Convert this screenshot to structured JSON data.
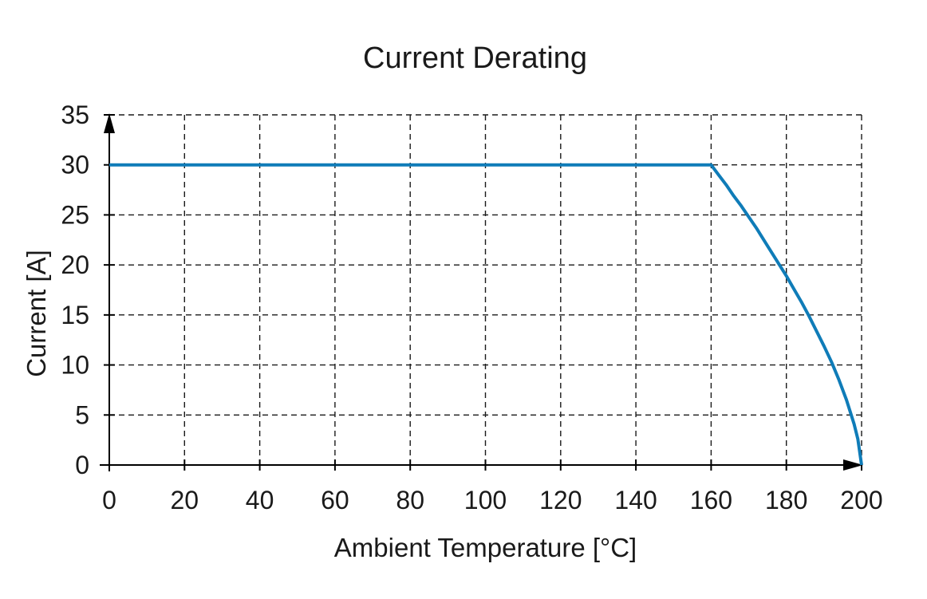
{
  "style": {
    "background": "#ffffff",
    "line_color": "#0f7cb8",
    "grid_color": "#1a1a1a",
    "axis_color": "#000000",
    "text_color": "#1a1a1a"
  },
  "chart_data": {
    "type": "line",
    "title": "Current Derating",
    "xlabel": "Ambient Temperature [°C]",
    "ylabel": "Current [A]",
    "xlim": [
      0,
      200
    ],
    "ylim": [
      0,
      35
    ],
    "x_ticks": [
      0,
      20,
      40,
      60,
      80,
      100,
      120,
      140,
      160,
      180,
      200
    ],
    "y_ticks": [
      0,
      5,
      10,
      15,
      20,
      25,
      30,
      35
    ],
    "grid": "dashed",
    "legend": "none",
    "axis_arrows": true,
    "key_points": {
      "flat_current_A": 30,
      "derating_start_C": 160,
      "zero_current_C": 200
    },
    "series": [
      {
        "color": "#0f7cb8",
        "points": [
          [
            0,
            30
          ],
          [
            160,
            30
          ],
          [
            162,
            29.0
          ],
          [
            164,
            28.0
          ],
          [
            166,
            26.9
          ],
          [
            168,
            25.9
          ],
          [
            170,
            24.8
          ],
          [
            172,
            23.7
          ],
          [
            174,
            22.5
          ],
          [
            176,
            21.3
          ],
          [
            178,
            20.1
          ],
          [
            180,
            18.9
          ],
          [
            182,
            17.6
          ],
          [
            184,
            16.3
          ],
          [
            186,
            14.9
          ],
          [
            188,
            13.4
          ],
          [
            190,
            11.9
          ],
          [
            192,
            10.3
          ],
          [
            194,
            8.5
          ],
          [
            196,
            6.5
          ],
          [
            198,
            4.1
          ],
          [
            199,
            2.6
          ],
          [
            200,
            0
          ]
        ]
      }
    ]
  }
}
